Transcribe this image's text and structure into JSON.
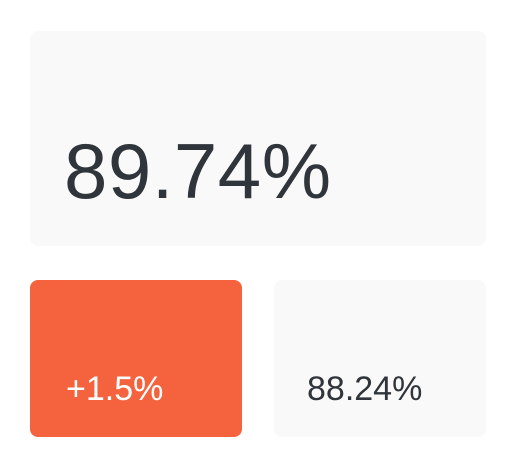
{
  "kpi": {
    "current_value": "89.74%",
    "change_value": "+1.5%",
    "previous_value": "88.24%"
  },
  "colors": {
    "card_background": "#f9f9f9",
    "change_background": "#f4623e",
    "primary_text": "#30353b",
    "change_text": "#ffffff"
  }
}
